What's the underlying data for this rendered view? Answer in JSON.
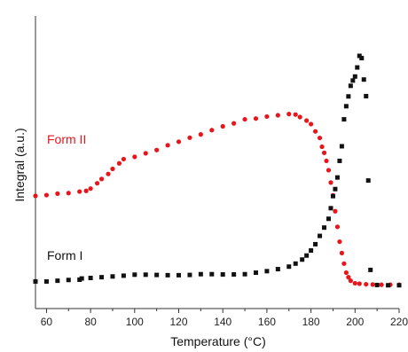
{
  "chart_data": {
    "type": "scatter",
    "xlabel": "Temperature (°C)",
    "ylabel": "Integral (a.u.)",
    "xlim": [
      55,
      220
    ],
    "ylim": [
      0,
      1
    ],
    "xticks": [
      60,
      80,
      100,
      120,
      140,
      160,
      180,
      200,
      220
    ],
    "x_tick_labels": [
      "60",
      "80",
      "100",
      "120",
      "140",
      "160",
      "180",
      "200",
      "220"
    ],
    "y_tick_labels": false,
    "grid": false,
    "legend": "none",
    "series": [
      {
        "name": "Form I",
        "color": "#111111",
        "marker": "square",
        "points": [
          [
            55,
            0.023
          ],
          [
            60,
            0.023
          ],
          [
            65,
            0.026
          ],
          [
            70,
            0.029
          ],
          [
            75,
            0.03
          ],
          [
            76,
            0.035
          ],
          [
            80,
            0.037
          ],
          [
            85,
            0.04
          ],
          [
            90,
            0.043
          ],
          [
            95,
            0.046
          ],
          [
            100,
            0.05
          ],
          [
            105,
            0.05
          ],
          [
            110,
            0.049
          ],
          [
            115,
            0.048
          ],
          [
            120,
            0.048
          ],
          [
            125,
            0.049
          ],
          [
            130,
            0.052
          ],
          [
            135,
            0.052
          ],
          [
            140,
            0.051
          ],
          [
            145,
            0.051
          ],
          [
            150,
            0.052
          ],
          [
            155,
            0.058
          ],
          [
            160,
            0.064
          ],
          [
            165,
            0.072
          ],
          [
            170,
            0.082
          ],
          [
            173,
            0.094
          ],
          [
            176,
            0.11
          ],
          [
            178,
            0.126
          ],
          [
            180,
            0.146
          ],
          [
            182,
            0.171
          ],
          [
            184,
            0.204
          ],
          [
            186,
            0.237
          ],
          [
            188,
            0.272
          ],
          [
            189,
            0.314
          ],
          [
            190,
            0.362
          ],
          [
            191,
            0.39
          ],
          [
            192,
            0.436
          ],
          [
            193,
            0.502
          ],
          [
            194,
            0.56
          ],
          [
            195,
            0.667
          ],
          [
            196,
            0.719
          ],
          [
            197,
            0.758
          ],
          [
            198,
            0.8
          ],
          [
            199,
            0.821
          ],
          [
            200,
            0.837
          ],
          [
            201,
            0.873
          ],
          [
            202,
            0.919
          ],
          [
            203,
            0.91
          ],
          [
            204,
            0.825
          ],
          [
            205,
            0.759
          ],
          [
            206,
            0.424
          ],
          [
            207,
            0.069
          ],
          [
            210,
            0.009
          ],
          [
            215,
            0.008
          ],
          [
            220,
            0.008
          ]
        ]
      },
      {
        "name": "Form II",
        "color": "#e8161b",
        "marker": "circle",
        "points": [
          [
            55,
            0.363
          ],
          [
            60,
            0.366
          ],
          [
            65,
            0.372
          ],
          [
            70,
            0.374
          ],
          [
            75,
            0.38
          ],
          [
            78,
            0.383
          ],
          [
            80,
            0.392
          ],
          [
            83,
            0.413
          ],
          [
            85,
            0.43
          ],
          [
            88,
            0.45
          ],
          [
            90,
            0.47
          ],
          [
            93,
            0.492
          ],
          [
            95,
            0.509
          ],
          [
            100,
            0.518
          ],
          [
            105,
            0.532
          ],
          [
            110,
            0.545
          ],
          [
            115,
            0.564
          ],
          [
            120,
            0.578
          ],
          [
            125,
            0.594
          ],
          [
            130,
            0.607
          ],
          [
            135,
            0.624
          ],
          [
            140,
            0.639
          ],
          [
            145,
            0.651
          ],
          [
            150,
            0.667
          ],
          [
            155,
            0.67
          ],
          [
            160,
            0.678
          ],
          [
            165,
            0.683
          ],
          [
            170,
            0.688
          ],
          [
            173,
            0.686
          ],
          [
            175,
            0.676
          ],
          [
            178,
            0.662
          ],
          [
            180,
            0.648
          ],
          [
            182,
            0.619
          ],
          [
            184,
            0.593
          ],
          [
            185,
            0.558
          ],
          [
            186,
            0.534
          ],
          [
            187,
            0.502
          ],
          [
            188,
            0.465
          ],
          [
            189,
            0.416
          ],
          [
            190,
            0.365
          ],
          [
            191,
            0.302
          ],
          [
            192,
            0.24
          ],
          [
            193,
            0.181
          ],
          [
            194,
            0.136
          ],
          [
            195,
            0.094
          ],
          [
            196,
            0.058
          ],
          [
            197,
            0.04
          ],
          [
            198,
            0.026
          ],
          [
            200,
            0.016
          ],
          [
            202,
            0.014
          ],
          [
            205,
            0.012
          ],
          [
            208,
            0.011
          ],
          [
            212,
            0.01
          ],
          [
            216,
            0.01
          ],
          [
            220,
            0.01
          ]
        ]
      }
    ]
  }
}
